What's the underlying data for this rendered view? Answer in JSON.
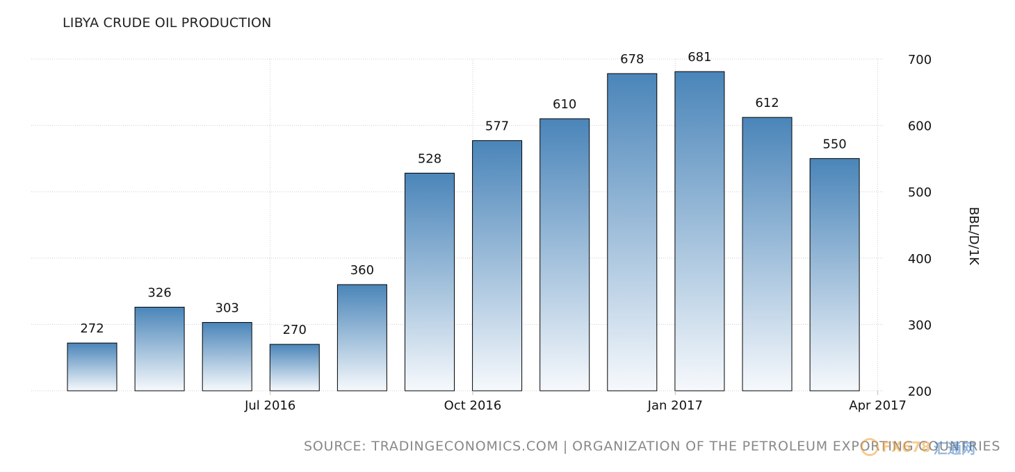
{
  "chart_data": {
    "type": "bar",
    "title": "LIBYA CRUDE OIL PRODUCTION",
    "ylabel": "BBL/D/1K",
    "ylim": [
      200,
      700
    ],
    "yticks": [
      200,
      300,
      400,
      500,
      600,
      700
    ],
    "y_axis_side": "right",
    "grid": true,
    "legend": "none",
    "categories": [
      "May 2016",
      "Jun 2016",
      "Jul 2016",
      "Aug 2016",
      "Sep 2016",
      "Oct 2016",
      "Nov 2016",
      "Dec 2016",
      "Jan 2017",
      "Feb 2017",
      "Mar 2017",
      "Apr 2017"
    ],
    "x_tick_labels": [
      {
        "category": "Jul 2016",
        "label": "Jul 2016"
      },
      {
        "category": "Oct 2016",
        "label": "Oct 2016"
      },
      {
        "category": "Jan 2017",
        "label": "Jan 2017"
      },
      {
        "category": "Apr 2017",
        "label": "Apr 2017"
      }
    ],
    "values": [
      272,
      326,
      303,
      270,
      360,
      528,
      577,
      610,
      678,
      681,
      612,
      550
    ],
    "colors": {
      "bar_top": "#4a85b9",
      "bar_bottom": "#f6f9fc",
      "bar_stroke": "#000000",
      "grid": "#cccccc"
    }
  },
  "source": {
    "left": "SOURCE: TRADINGECONOMICS.COM",
    "separator": "|",
    "right": "ORGANIZATION OF THE PETROLEUM EXPORTING COUNTRIES"
  },
  "watermark": {
    "latin": "FX678",
    "cn": "汇通网"
  }
}
